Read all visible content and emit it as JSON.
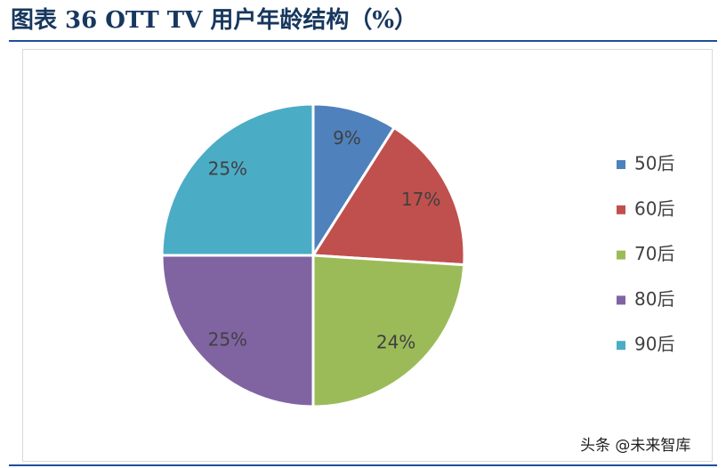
{
  "chart_data": {
    "type": "pie",
    "title": "图表 36 OTT TV 用户年龄结构（%）",
    "categories": [
      "50后",
      "60后",
      "70后",
      "80后",
      "90后"
    ],
    "values": [
      9,
      17,
      24,
      25,
      25
    ],
    "value_labels": [
      "9%",
      "17%",
      "24%",
      "25%",
      "25%"
    ],
    "colors": [
      "#4f81bd",
      "#c0504d",
      "#9bbb59",
      "#8064a2",
      "#4bacc6"
    ],
    "legend": "right",
    "watermark": "头条 @未来智库"
  }
}
